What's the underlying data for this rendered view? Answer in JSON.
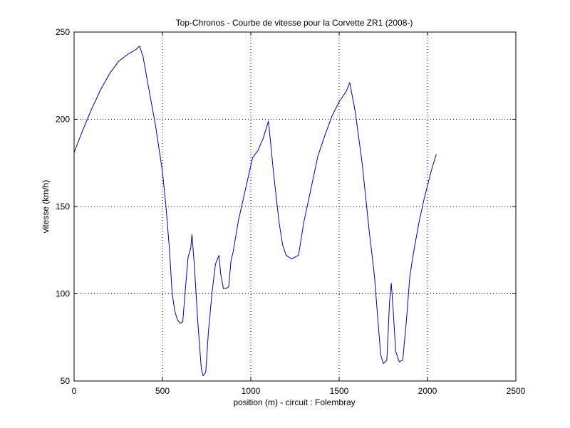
{
  "chart_data": {
    "type": "line",
    "title": "Top-Chronos - Courbe de vitesse pour la Corvette ZR1 (2008-)",
    "xlabel": "position (m) - circuit : Folembray",
    "ylabel": "vitesse (km/h)",
    "xlim": [
      0,
      2500
    ],
    "ylim": [
      50,
      250
    ],
    "xticks": [
      0,
      500,
      1000,
      1500,
      2000,
      2500
    ],
    "yticks": [
      50,
      100,
      150,
      200,
      250
    ],
    "grid": true,
    "line_color": "#0000aa",
    "series": [
      {
        "x": [
          0,
          50,
          100,
          150,
          200,
          250,
          300,
          350,
          370,
          390,
          420,
          460,
          500,
          520,
          540,
          555,
          570,
          585,
          600,
          615,
          630,
          645,
          660,
          667,
          680,
          700,
          720,
          730,
          745,
          760,
          780,
          800,
          820,
          830,
          845,
          860,
          875,
          888,
          900,
          930,
          970,
          1010,
          1040,
          1070,
          1100,
          1130,
          1160,
          1180,
          1200,
          1230,
          1270,
          1300,
          1340,
          1380,
          1420,
          1460,
          1500,
          1540,
          1560,
          1590,
          1630,
          1670,
          1700,
          1720,
          1735,
          1750,
          1770,
          1785,
          1795,
          1805,
          1820,
          1840,
          1860,
          1880,
          1900,
          1920,
          1950,
          1980,
          2020,
          2050
        ],
        "y": [
          181,
          194,
          206,
          217,
          226,
          233,
          237,
          240,
          242,
          236,
          219,
          197,
          170,
          150,
          125,
          100,
          90,
          85,
          83,
          84,
          103,
          121,
          126,
          134,
          117,
          84,
          57,
          53,
          55,
          78,
          100,
          117,
          122,
          111,
          103,
          103,
          104,
          119,
          124,
          142,
          160,
          178,
          182,
          189,
          199,
          168,
          141,
          128,
          122,
          120,
          122,
          141,
          160,
          179,
          191,
          202,
          210,
          216,
          221,
          205,
          175,
          136,
          110,
          84,
          65,
          60,
          62,
          95,
          106,
          92,
          67,
          61,
          62,
          84,
          110,
          123,
          140,
          154,
          170,
          180
        ]
      }
    ]
  }
}
